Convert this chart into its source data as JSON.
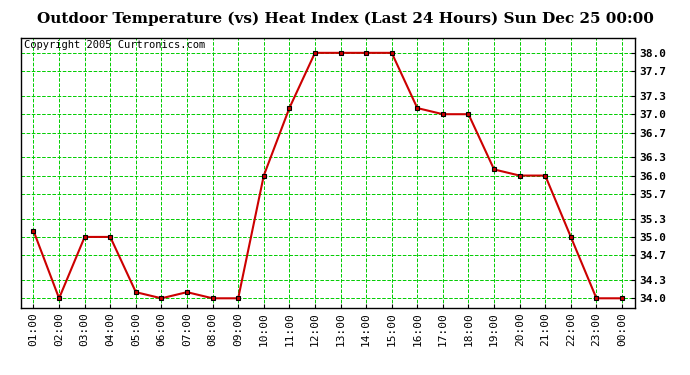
{
  "title": "Outdoor Temperature (vs) Heat Index (Last 24 Hours) Sun Dec 25 00:00",
  "copyright": "Copyright 2005 Curtronics.com",
  "x_labels": [
    "01:00",
    "02:00",
    "03:00",
    "04:00",
    "05:00",
    "06:00",
    "07:00",
    "08:00",
    "09:00",
    "10:00",
    "11:00",
    "12:00",
    "13:00",
    "14:00",
    "15:00",
    "16:00",
    "17:00",
    "18:00",
    "19:00",
    "20:00",
    "21:00",
    "22:00",
    "23:00",
    "00:00"
  ],
  "y_values": [
    35.1,
    34.0,
    35.0,
    35.0,
    34.1,
    34.0,
    34.1,
    34.0,
    34.0,
    36.0,
    37.1,
    38.0,
    38.0,
    38.0,
    38.0,
    37.1,
    37.0,
    37.0,
    36.1,
    36.0,
    36.0,
    35.0,
    34.0,
    34.0
  ],
  "ylim_min": 33.85,
  "ylim_max": 38.25,
  "yticks": [
    34.0,
    34.3,
    34.7,
    35.0,
    35.3,
    35.7,
    36.0,
    36.3,
    36.7,
    37.0,
    37.3,
    37.7,
    38.0
  ],
  "line_color": "#cc0000",
  "marker_color": "#000000",
  "bg_color": "#ffffff",
  "grid_color": "#00cc00",
  "title_fontsize": 11,
  "copyright_fontsize": 7.5,
  "tick_fontsize": 8,
  "ytick_fontsize": 8
}
